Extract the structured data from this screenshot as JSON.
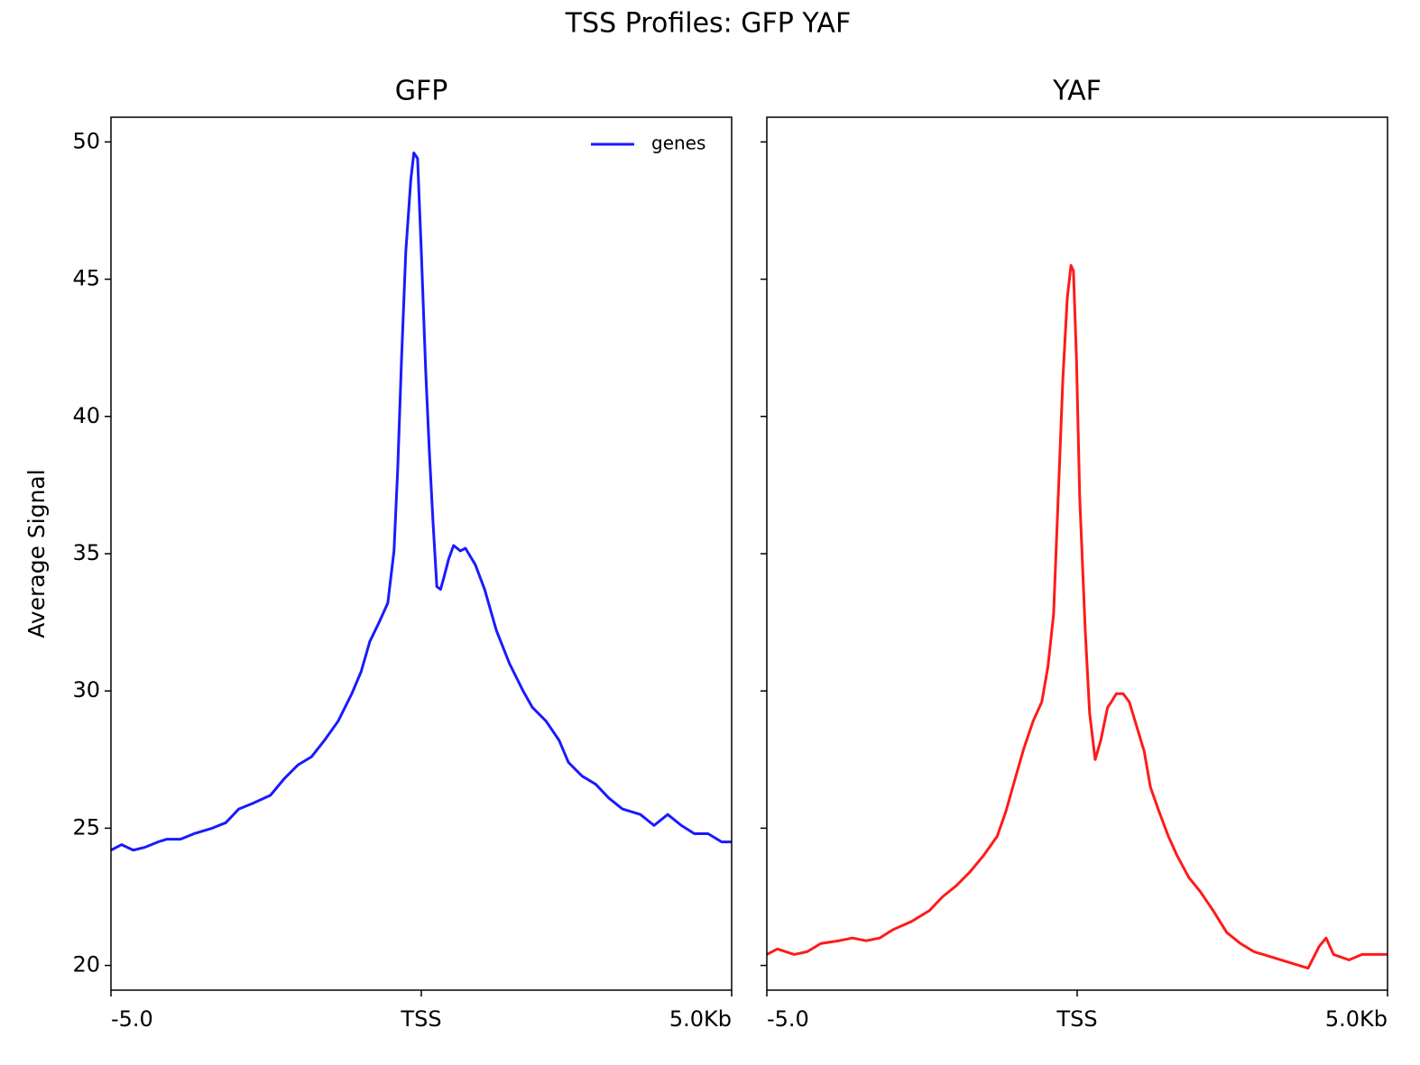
{
  "title": "TSS Profiles: GFP YAF",
  "chart_data": [
    {
      "type": "line",
      "title": "GFP",
      "ylabel": "Average Signal",
      "x": [
        -5.0,
        -4.83,
        -4.64,
        -4.46,
        -4.24,
        -4.1,
        -3.88,
        -3.66,
        -3.37,
        -3.15,
        -2.94,
        -2.72,
        -2.43,
        -2.21,
        -1.99,
        -1.77,
        -1.56,
        -1.34,
        -1.12,
        -0.97,
        -0.83,
        -0.68,
        -0.54,
        -0.44,
        -0.38,
        -0.32,
        -0.25,
        -0.17,
        -0.12,
        -0.06,
        0.0,
        0.07,
        0.13,
        0.19,
        0.25,
        0.31,
        0.36,
        0.44,
        0.52,
        0.63,
        0.71,
        0.87,
        1.02,
        1.21,
        1.42,
        1.64,
        1.79,
        2.01,
        2.22,
        2.37,
        2.59,
        2.81,
        3.02,
        3.24,
        3.53,
        3.75,
        3.97,
        4.19,
        4.4,
        4.62,
        4.84,
        5.0
      ],
      "series": [
        {
          "name": "genes",
          "color": "#1a1aff",
          "values": [
            24.2,
            24.4,
            24.2,
            24.3,
            24.5,
            24.6,
            24.6,
            24.8,
            25.0,
            25.2,
            25.7,
            25.9,
            26.2,
            26.8,
            27.3,
            27.6,
            28.2,
            28.9,
            29.9,
            30.7,
            31.8,
            32.5,
            33.2,
            35.1,
            38.1,
            42.0,
            46.0,
            48.6,
            49.6,
            49.4,
            46.0,
            41.7,
            38.7,
            36.1,
            33.8,
            33.7,
            34.1,
            34.8,
            35.3,
            35.1,
            35.2,
            34.6,
            33.7,
            32.2,
            31.0,
            30.0,
            29.4,
            28.9,
            28.2,
            27.4,
            26.9,
            26.6,
            26.1,
            25.7,
            25.5,
            25.1,
            25.5,
            25.1,
            24.8,
            24.8,
            24.5,
            24.5
          ]
        }
      ],
      "xlim": [
        -5,
        5
      ],
      "xticks": [
        {
          "value": -5,
          "label": "-5.0"
        },
        {
          "value": 0,
          "label": "TSS"
        },
        {
          "value": 5,
          "label": "5.0Kb"
        }
      ],
      "ylim": [
        19.1,
        50.9
      ],
      "yticks": [
        20,
        25,
        30,
        35,
        40,
        45,
        50
      ],
      "ytick_labels": true,
      "legend": "upper right"
    },
    {
      "type": "line",
      "title": "YAF",
      "x": [
        -5.0,
        -4.83,
        -4.56,
        -4.35,
        -4.13,
        -3.84,
        -3.62,
        -3.4,
        -3.18,
        -2.97,
        -2.67,
        -2.38,
        -2.17,
        -1.95,
        -1.73,
        -1.51,
        -1.29,
        -1.15,
        -1.0,
        -0.86,
        -0.71,
        -0.57,
        -0.47,
        -0.38,
        -0.31,
        -0.23,
        -0.16,
        -0.1,
        -0.06,
        -0.01,
        0.04,
        0.13,
        0.2,
        0.29,
        0.38,
        0.49,
        0.55,
        0.63,
        0.74,
        0.84,
        0.96,
        1.08,
        1.18,
        1.32,
        1.47,
        1.61,
        1.8,
        1.98,
        2.19,
        2.41,
        2.63,
        2.85,
        3.14,
        3.43,
        3.72,
        3.9,
        4.01,
        4.13,
        4.38,
        4.59,
        4.81,
        5.0
      ],
      "series": [
        {
          "color": "#ff1a1a",
          "values": [
            20.4,
            20.6,
            20.4,
            20.5,
            20.8,
            20.9,
            21.0,
            20.9,
            21.0,
            21.3,
            21.6,
            22.0,
            22.5,
            22.9,
            23.4,
            24.0,
            24.7,
            25.6,
            26.8,
            27.9,
            28.9,
            29.6,
            30.9,
            32.8,
            36.8,
            41.4,
            44.3,
            45.5,
            45.3,
            42.0,
            37.1,
            32.2,
            29.2,
            27.5,
            28.2,
            29.4,
            29.6,
            29.9,
            29.9,
            29.6,
            28.7,
            27.8,
            26.5,
            25.6,
            24.7,
            24.0,
            23.2,
            22.7,
            22.0,
            21.2,
            20.8,
            20.5,
            20.3,
            20.1,
            19.9,
            20.7,
            21.0,
            20.4,
            20.2,
            20.4,
            20.4,
            20.4
          ]
        }
      ],
      "xlim": [
        -5,
        5
      ],
      "xticks": [
        {
          "value": -5,
          "label": "-5.0"
        },
        {
          "value": 0,
          "label": "TSS"
        },
        {
          "value": 5,
          "label": "5.0Kb"
        }
      ],
      "ylim": [
        19.1,
        50.9
      ],
      "yticks": [
        20,
        25,
        30,
        35,
        40,
        45,
        50
      ],
      "ytick_labels": false
    }
  ]
}
